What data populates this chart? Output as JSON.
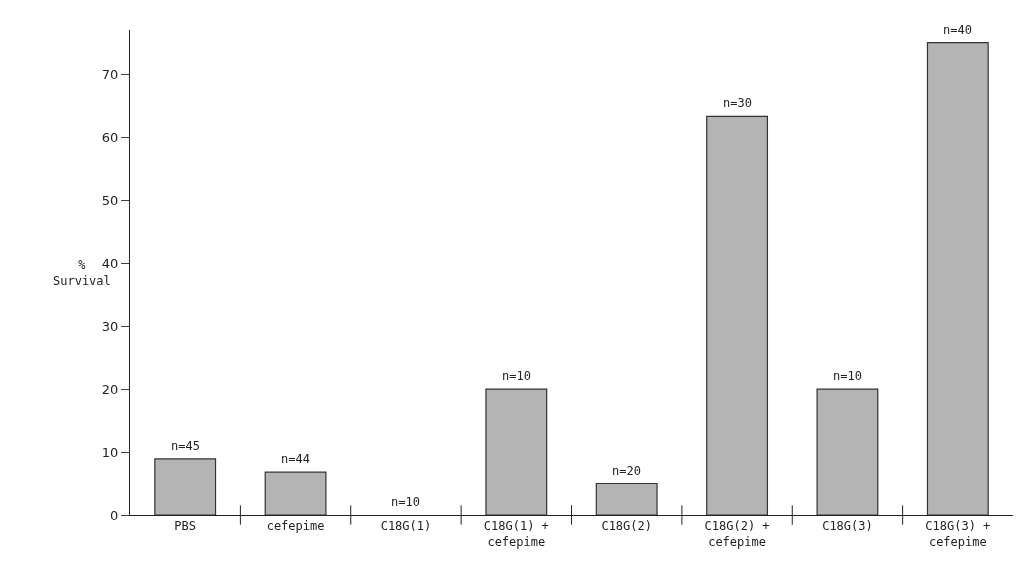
{
  "chart_data": {
    "type": "bar",
    "ylabel": "%\nSurvival",
    "categories": [
      "PBS",
      "cefepime",
      "C18G(1)",
      "C18G(1) +\ncefepime",
      "C18G(2)",
      "C18G(2) +\ncefepime",
      "C18G(3)",
      "C18G(3) +\ncefepime"
    ],
    "values": [
      8.9,
      6.8,
      0,
      20,
      5,
      63.3,
      20,
      75
    ],
    "annotations": [
      {
        "text": "n=45",
        "x": "PBS",
        "y": 8.9
      },
      {
        "text": "n=44",
        "x": "cefepime",
        "y": 6.8
      },
      {
        "text": "n=10",
        "x": "C18G(1)",
        "y": 0
      },
      {
        "text": "n=10",
        "x": "C18G(1) +\ncefepime",
        "y": 20
      },
      {
        "text": "n=20",
        "x": "C18G(2)",
        "y": 5
      },
      {
        "text": "n=30",
        "x": "C18G(2) +\ncefepime",
        "y": 63.3
      },
      {
        "text": "n=10",
        "x": "C18G(3)",
        "y": 20
      },
      {
        "text": "n=40",
        "x": "C18G(3) +\ncefepime",
        "y": 75
      }
    ],
    "color": "#b4b4b4",
    "ylim": [
      0,
      77
    ],
    "yticks": [
      0,
      10,
      20,
      30,
      40,
      50,
      60,
      70
    ],
    "grid": false,
    "legend": false
  }
}
